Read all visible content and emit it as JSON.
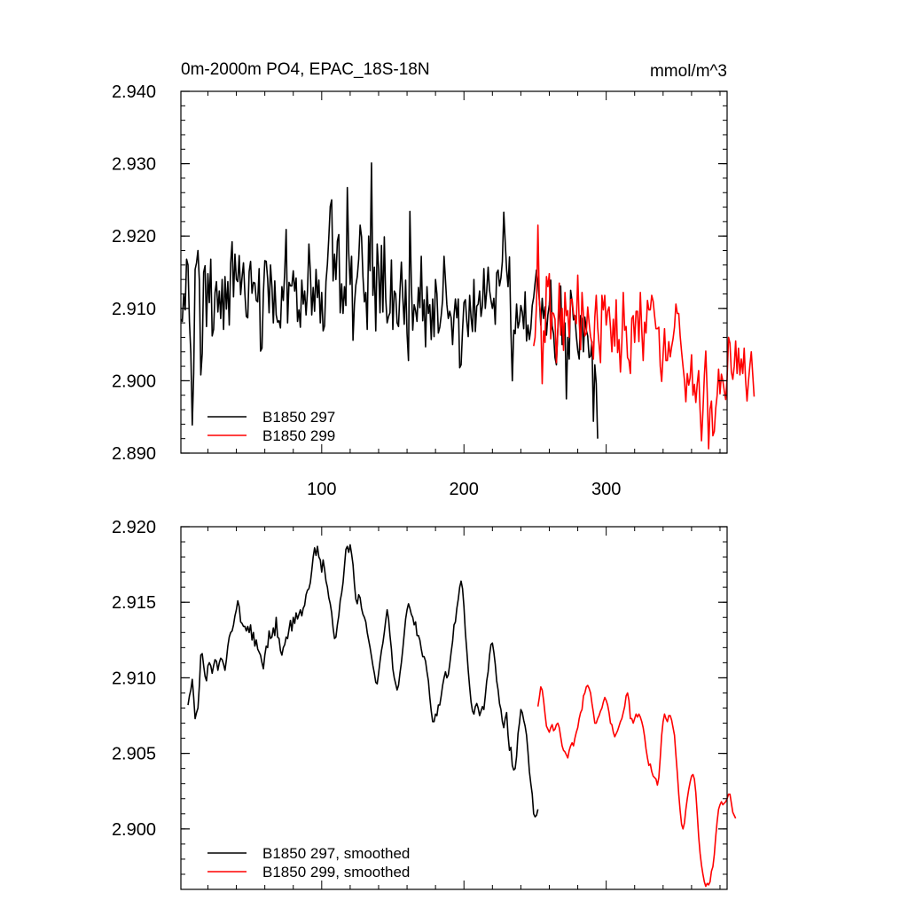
{
  "figure": {
    "title": "0m-2000m PO4, EPAC_18S-18N",
    "units": "mmol/m^3"
  },
  "chart_data": [
    {
      "type": "line",
      "panel": "top",
      "title": "0m-2000m PO4, EPAC_18S-18N",
      "units": "mmol/m^3",
      "xlim": [
        1,
        385
      ],
      "ylim": [
        2.89,
        2.94
      ],
      "xticks": [
        100,
        200,
        300
      ],
      "xtick_labels": [
        "100",
        "200",
        "300"
      ],
      "yticks": [
        2.89,
        2.9,
        2.91,
        2.92,
        2.93,
        2.94
      ],
      "ytick_labels": [
        "2.890",
        "2.900",
        "2.910",
        "2.920",
        "2.930",
        "2.940"
      ],
      "legend_location": "bottom-left",
      "series": [
        {
          "name": "B1850 297",
          "color": "#000000",
          "x_start": 1,
          "values": [
            2.9085,
            2.9082,
            2.912,
            2.9098,
            2.9168,
            2.916,
            2.9082,
            2.9038,
            2.8939,
            2.901,
            2.9154,
            2.9163,
            2.918,
            2.9138,
            2.9008,
            2.9038,
            2.915,
            2.9159,
            2.9075,
            2.9148,
            2.9108,
            2.9168,
            2.9062,
            2.9071,
            2.9122,
            2.9137,
            2.9095,
            2.9124,
            2.9086,
            2.914,
            2.9071,
            2.9144,
            2.9099,
            2.9137,
            2.9077,
            2.9162,
            2.9192,
            2.9116,
            2.9175,
            2.914,
            2.9137,
            2.9173,
            2.9119,
            2.9143,
            2.9163,
            2.912,
            2.9089,
            2.9087,
            2.9151,
            2.9165,
            2.9121,
            2.9136,
            2.9135,
            2.9111,
            2.9109,
            2.9155,
            2.9041,
            2.9045,
            2.9121,
            2.9166,
            2.9165,
            2.9141,
            2.9094,
            2.916,
            2.913,
            2.908,
            2.9138,
            2.9091,
            2.9081,
            2.9083,
            2.9073,
            2.913,
            2.9111,
            2.915,
            2.9209,
            2.908,
            2.9136,
            2.9131,
            2.9131,
            2.9152,
            2.9124,
            2.9142,
            2.9082,
            2.9098,
            2.9074,
            2.9139,
            2.9106,
            2.9124,
            2.9091,
            2.9124,
            2.9189,
            2.9151,
            2.9091,
            2.9129,
            2.9096,
            2.9154,
            2.9115,
            2.9139,
            2.908,
            2.9122,
            2.9069,
            2.9076,
            2.9137,
            2.9161,
            2.9198,
            2.9241,
            2.925,
            2.9138,
            2.9175,
            2.914,
            2.9193,
            2.9202,
            2.9094,
            2.9134,
            2.9093,
            2.913,
            2.9104,
            2.9267,
            2.9177,
            2.9133,
            2.9172,
            2.9056,
            2.9106,
            2.9132,
            2.9144,
            2.9168,
            2.9215,
            2.9199,
            2.9144,
            2.9109,
            2.9122,
            2.9071,
            2.92,
            2.9152,
            2.9301,
            2.9118,
            2.9157,
            2.9069,
            2.9189,
            2.9155,
            2.9094,
            2.9187,
            2.9095,
            2.9199,
            2.9114,
            2.908,
            2.9089,
            2.9094,
            2.9167,
            2.9071,
            2.9124,
            2.912,
            2.908,
            2.9075,
            2.9124,
            2.9164,
            2.9115,
            2.9078,
            2.9139,
            2.9065,
            2.9028,
            2.9234,
            2.9135,
            2.907,
            2.9105,
            2.9097,
            2.9082,
            2.9129,
            2.9101,
            2.9172,
            2.9083,
            2.9112,
            2.9047,
            2.913,
            2.9093,
            2.9105,
            2.9057,
            2.9113,
            2.9061,
            2.914,
            2.912,
            2.9066,
            2.9074,
            2.909,
            2.9112,
            2.9172,
            2.9139,
            2.9105,
            2.9086,
            2.9096,
            2.9087,
            2.905,
            2.909,
            2.9113,
            2.9087,
            2.9113,
            2.9018,
            2.9022,
            2.907,
            2.9108,
            2.9112,
            2.9082,
            2.9061,
            2.9118,
            2.9087,
            2.9068,
            2.914,
            2.9068,
            2.9103,
            2.9106,
            2.9124,
            2.9089,
            2.9104,
            2.9155,
            2.91,
            2.9124,
            2.9157,
            2.9125,
            2.9111,
            2.91,
            2.9114,
            2.9078,
            2.9149,
            2.9153,
            2.9131,
            2.9142,
            2.9165,
            2.9233,
            2.9192,
            2.9153,
            2.913,
            2.9171,
            2.907,
            2.9,
            2.907,
            2.9065,
            2.9106,
            2.9073,
            2.9082,
            2.9104,
            2.9095,
            2.9072,
            2.9123,
            2.9055,
            2.9077,
            2.9057,
            2.9072,
            2.9104,
            2.9115,
            2.9135,
            2.9153,
            2.9136,
            2.9111,
            2.9077,
            2.9114,
            2.9086,
            2.9102,
            2.9063,
            2.9091,
            2.9105,
            2.9139,
            2.9076,
            2.9065,
            2.9032,
            2.9022,
            2.907,
            2.9098,
            2.9131,
            2.905,
            2.9059,
            2.908,
            2.8975,
            2.906,
            2.903,
            2.9125,
            2.911,
            2.9084,
            2.909,
            2.9062,
            2.9042,
            2.903,
            2.909,
            2.9086,
            2.904,
            2.9088,
            2.907,
            2.9062,
            2.9032,
            2.9034,
            2.9054,
            2.8944,
            2.9022,
            2.8996,
            2.892
          ]
        },
        {
          "name": "B1850 299",
          "color": "#ff0000",
          "x_start": 249,
          "values": [
            2.9048,
            2.906,
            2.9106,
            2.9215,
            2.9111,
            2.9088,
            2.8996,
            2.9069,
            2.9053,
            2.9144,
            2.913,
            2.9148,
            2.9058,
            2.9094,
            2.9093,
            2.9085,
            2.9025,
            2.9072,
            2.9135,
            2.9063,
            2.91,
            2.9042,
            2.9122,
            2.909,
            2.9097,
            2.906,
            2.9112,
            2.9113,
            2.9093,
            2.9086,
            2.9079,
            2.9146,
            2.9083,
            2.9043,
            2.9122,
            2.9091,
            2.9062,
            2.9066,
            2.9102,
            2.908,
            2.9061,
            2.9052,
            2.903,
            2.9088,
            2.9118,
            2.9074,
            2.905,
            2.9025,
            2.9118,
            2.9098,
            2.9118,
            2.9077,
            2.9096,
            2.9102,
            2.9074,
            2.904,
            2.9085,
            2.9048,
            2.9112,
            2.9039,
            2.9057,
            2.9012,
            2.9052,
            2.9122,
            2.907,
            2.9075,
            2.9032,
            2.9028,
            2.901,
            2.9086,
            2.909,
            2.9053,
            2.9096,
            2.9096,
            2.9054,
            2.9122,
            2.907,
            2.9028,
            2.9081,
            2.9066,
            2.9111,
            2.9098,
            2.9098,
            2.9118,
            2.911,
            2.909,
            2.9072,
            2.9072,
            2.9074,
            2.902,
            2.8999,
            2.9036,
            2.9072,
            2.9028,
            2.9028,
            2.9054,
            2.9033,
            2.9047,
            2.9058,
            2.9074,
            2.9106,
            2.9093,
            2.9093,
            2.9062,
            2.904,
            2.902,
            2.9001,
            2.8971,
            2.901,
            2.8994,
            2.9004,
            2.9036,
            2.898,
            2.8995,
            2.897,
            2.8996,
            2.9014,
            2.896,
            2.8917,
            2.8958,
            2.9007,
            2.9041,
            2.8985,
            2.8906,
            2.8961,
            2.8972,
            2.8924,
            2.893,
            2.8962,
            2.898,
            2.9016,
            2.8982,
            2.9009,
            2.9,
            2.8986,
            2.8974,
            2.9003,
            2.906,
            2.9052,
            2.9012,
            2.9002,
            2.902,
            2.9055,
            2.901,
            2.9045,
            2.9008,
            2.903,
            2.901,
            2.9045,
            2.9001,
            2.8972,
            2.8999,
            2.9021,
            2.904,
            2.9009,
            2.8978
          ]
        }
      ]
    },
    {
      "type": "line",
      "panel": "bottom",
      "xlim": [
        1,
        385
      ],
      "ylim": [
        2.896,
        2.92
      ],
      "yticks": [
        2.9,
        2.905,
        2.91,
        2.915,
        2.92
      ],
      "ytick_labels": [
        "2.900",
        "2.905",
        "2.910",
        "2.915",
        "2.920"
      ],
      "legend_location": "bottom-left",
      "series": [
        {
          "name": "B1850 297, smoothed",
          "color": "#000000",
          "x_start": 6,
          "values": [
            2.9082,
            2.9088,
            2.9092,
            2.9099,
            2.9087,
            2.9073,
            2.9077,
            2.908,
            2.9095,
            2.9115,
            2.9116,
            2.9108,
            2.9101,
            2.9098,
            2.9108,
            2.911,
            2.9108,
            2.9103,
            2.9108,
            2.9112,
            2.9111,
            2.9105,
            2.911,
            2.9113,
            2.9112,
            2.9109,
            2.9105,
            2.9112,
            2.9121,
            2.9127,
            2.913,
            2.9131,
            2.9135,
            2.9141,
            2.9145,
            2.9151,
            2.9147,
            2.9137,
            2.9136,
            2.9134,
            2.9134,
            2.9131,
            2.9134,
            2.913,
            2.9135,
            2.9125,
            2.913,
            2.9121,
            2.9125,
            2.9119,
            2.9117,
            2.9115,
            2.911,
            2.9106,
            2.9115,
            2.9121,
            2.912,
            2.9131,
            2.9126,
            2.9127,
            2.9133,
            2.9128,
            2.914,
            2.9127,
            2.9126,
            2.9118,
            2.9115,
            2.912,
            2.9122,
            2.9127,
            2.9126,
            2.9132,
            2.9138,
            2.9131,
            2.914,
            2.9136,
            2.9143,
            2.9139,
            2.9142,
            2.9145,
            2.9141,
            2.9146,
            2.9148,
            2.9155,
            2.9158,
            2.9159,
            2.9163,
            2.9171,
            2.918,
            2.9186,
            2.9181,
            2.9187,
            2.918,
            2.9178,
            2.917,
            2.9178,
            2.9172,
            2.9164,
            2.916,
            2.9153,
            2.9149,
            2.9143,
            2.9133,
            2.9126,
            2.9127,
            2.9135,
            2.9141,
            2.9151,
            2.9156,
            2.9163,
            2.9174,
            2.9185,
            2.9187,
            2.9183,
            2.9188,
            2.9182,
            2.9175,
            2.9162,
            2.9152,
            2.9149,
            2.9155,
            2.9153,
            2.9146,
            2.9142,
            2.914,
            2.9137,
            2.913,
            2.9125,
            2.912,
            2.9114,
            2.9108,
            2.9103,
            2.9097,
            2.9096,
            2.9103,
            2.9111,
            2.9118,
            2.9123,
            2.913,
            2.9138,
            2.9145,
            2.9139,
            2.9128,
            2.9119,
            2.9106,
            2.91,
            2.9096,
            2.9092,
            2.9095,
            2.9103,
            2.911,
            2.9119,
            2.9129,
            2.9139,
            2.9145,
            2.9149,
            2.9146,
            2.9142,
            2.914,
            2.9135,
            2.9137,
            2.9128,
            2.9128,
            2.9125,
            2.9119,
            2.9114,
            2.9114,
            2.9111,
            2.9104,
            2.9098,
            2.9087,
            2.9078,
            2.9071,
            2.9071,
            2.9076,
            2.9075,
            2.9082,
            2.9082,
            2.9088,
            2.9095,
            2.91,
            2.9104,
            2.91,
            2.9102,
            2.9109,
            2.9117,
            2.9124,
            2.9135,
            2.9137,
            2.9146,
            2.9152,
            2.916,
            2.9164,
            2.9159,
            2.9147,
            2.913,
            2.9118,
            2.9105,
            2.9094,
            2.9084,
            2.9078,
            2.9076,
            2.9081,
            2.9083,
            2.908,
            2.9075,
            2.9078,
            2.9081,
            2.9079,
            2.9088,
            2.9098,
            2.9104,
            2.9115,
            2.9122,
            2.9123,
            2.9117,
            2.9109,
            2.9098,
            2.9092,
            2.9083,
            2.9079,
            2.9071,
            2.9067,
            2.9073,
            2.9077,
            2.9062,
            2.9052,
            2.9054,
            2.9042,
            2.9039,
            2.904,
            2.9048,
            2.9063,
            2.907,
            2.9079,
            2.9077,
            2.9072,
            2.9068,
            2.9062,
            2.9051,
            2.9038,
            2.903,
            2.9023,
            2.901,
            2.9008,
            2.9009,
            2.9013
          ]
        },
        {
          "name": "B1850 299, smoothed",
          "color": "#ff0000",
          "x_start": 252,
          "values": [
            2.9081,
            2.9087,
            2.9094,
            2.9092,
            2.9085,
            2.9076,
            2.9068,
            2.9066,
            2.9064,
            2.9067,
            2.9069,
            2.9065,
            2.9066,
            2.9069,
            2.907,
            2.9067,
            2.9061,
            2.9055,
            2.9052,
            2.9051,
            2.9049,
            2.9047,
            2.9052,
            2.9055,
            2.9057,
            2.9055,
            2.906,
            2.9064,
            2.9067,
            2.9073,
            2.9077,
            2.9079,
            2.9088,
            2.909,
            2.9094,
            2.9095,
            2.9093,
            2.909,
            2.9083,
            2.9077,
            2.907,
            2.907,
            2.9073,
            2.9075,
            2.9078,
            2.908,
            2.9084,
            2.9087,
            2.9085,
            2.9082,
            2.9077,
            2.907,
            2.9069,
            2.9064,
            2.9061,
            2.9063,
            2.9065,
            2.9068,
            2.9071,
            2.9073,
            2.9077,
            2.9081,
            2.9088,
            2.909,
            2.9085,
            2.9073,
            2.9073,
            2.907,
            2.9073,
            2.9076,
            2.9074,
            2.9076,
            2.9074,
            2.9071,
            2.9067,
            2.9061,
            2.9053,
            2.9047,
            2.9042,
            2.9043,
            2.9038,
            2.9035,
            2.9034,
            2.9033,
            2.9029,
            2.9034,
            2.9047,
            2.9062,
            2.9071,
            2.9076,
            2.9073,
            2.9071,
            2.9075,
            2.9075,
            2.9072,
            2.9067,
            2.9062,
            2.9049,
            2.9037,
            2.9023,
            2.9012,
            2.9003,
            2.9,
            2.9004,
            2.9013,
            2.902,
            2.9026,
            2.9031,
            2.9035,
            2.9036,
            2.9033,
            2.9024,
            2.901,
            2.8995,
            2.8984,
            2.8976,
            2.897,
            2.8965,
            2.8962,
            2.8964,
            2.8963,
            2.8965,
            2.8972,
            2.8975,
            2.8983,
            2.8995,
            2.9005,
            2.9013,
            2.9016,
            2.9018,
            2.9016,
            2.9017,
            2.9018,
            2.902,
            2.9023,
            2.9023,
            2.9017,
            2.9011,
            2.9009,
            2.9007
          ]
        }
      ]
    }
  ]
}
